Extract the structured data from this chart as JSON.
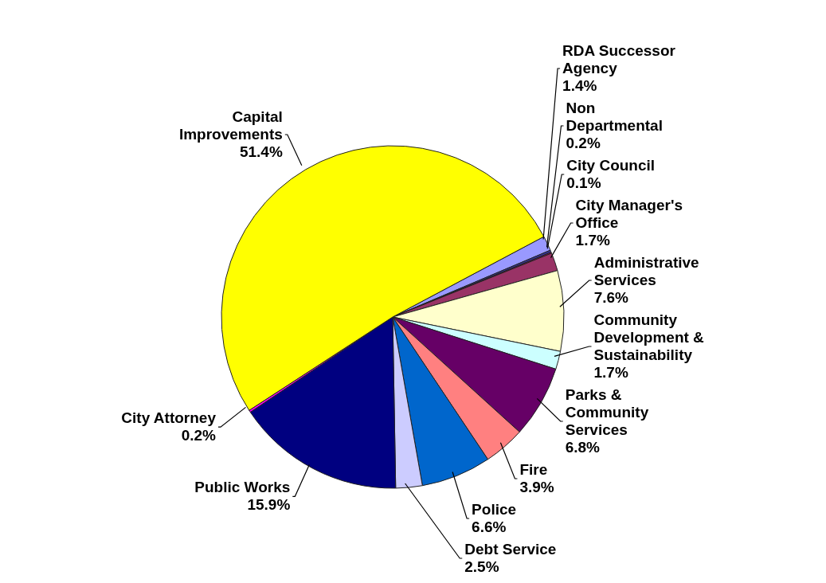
{
  "chart_data": {
    "type": "pie",
    "categories": [
      "RDA Successor Agency",
      "Non Departmental",
      "City Council",
      "City Manager's Office",
      "Administrative Services",
      "Community Development & Sustainability",
      "Parks & Community Services",
      "Fire",
      "Police",
      "Debt Service",
      "Public Works",
      "City Attorney",
      "Capital Improvements"
    ],
    "values": [
      1.4,
      0.2,
      0.1,
      1.7,
      7.6,
      1.7,
      6.8,
      3.9,
      6.6,
      2.5,
      15.9,
      0.2,
      51.4
    ],
    "value_labels": [
      "1.4%",
      "0.2%",
      "0.1%",
      "1.7%",
      "7.6%",
      "1.7%",
      "6.8%",
      "3.9%",
      "6.6%",
      "2.5%",
      "15.9%",
      "0.2%",
      "51.4%"
    ],
    "colors": [
      "#9999ff",
      "#333399",
      "#cc0066",
      "#993366",
      "#ffffcc",
      "#ccffff",
      "#660066",
      "#ff8080",
      "#0066cc",
      "#ccccff",
      "#000080",
      "#ff00ff",
      "#ffff00"
    ]
  }
}
